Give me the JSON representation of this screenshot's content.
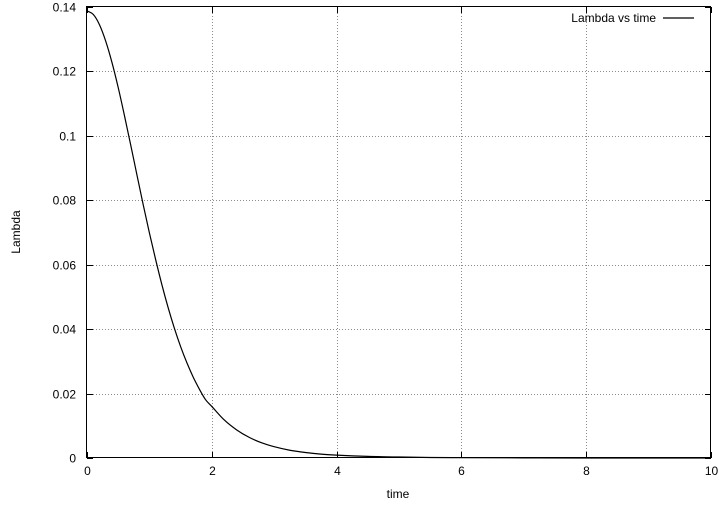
{
  "chart_data": {
    "type": "line",
    "title": "",
    "xlabel": "time",
    "ylabel": "Lambda",
    "xlim": [
      0,
      10
    ],
    "ylim": [
      0,
      0.14
    ],
    "x_ticks": [
      "0",
      "2",
      "4",
      "6",
      "8",
      "10"
    ],
    "y_ticks": [
      "0",
      "0.02",
      "0.04",
      "0.06",
      "0.08",
      "0.1",
      "0.12",
      "0.14"
    ],
    "grid": true,
    "legend_position": "top-right",
    "series": [
      {
        "name": "Lambda vs time",
        "color": "#000000",
        "x": [
          0,
          0.1,
          0.2,
          0.3,
          0.4,
          0.5,
          0.6,
          0.7,
          0.8,
          0.9,
          1.0,
          1.1,
          1.2,
          1.3,
          1.4,
          1.5,
          1.6,
          1.7,
          1.8,
          1.9,
          2.0,
          2.2,
          2.4,
          2.6,
          2.8,
          3.0,
          3.25,
          3.5,
          3.75,
          4.0,
          4.5,
          5.0,
          5.5,
          6.0,
          7.0,
          8.0,
          9.0,
          10.0
        ],
        "y": [
          0.1388,
          0.1377,
          0.1345,
          0.1294,
          0.1228,
          0.115,
          0.1063,
          0.0972,
          0.0879,
          0.0787,
          0.0699,
          0.0616,
          0.0538,
          0.0467,
          0.0403,
          0.0346,
          0.0296,
          0.0252,
          0.0214,
          0.0181,
          0.016,
          0.0118,
          0.0087,
          0.0064,
          0.0047,
          0.0035,
          0.0024,
          0.0017,
          0.0012,
          0.0009,
          0.0005,
          0.0003,
          0.00015,
          0.0001,
          4e-05,
          1e-05,
          0.0,
          0.0
        ]
      }
    ]
  }
}
